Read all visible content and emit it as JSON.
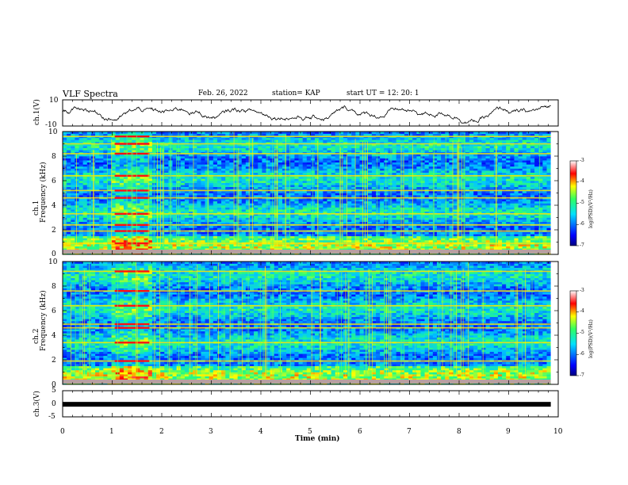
{
  "chart_data": {
    "type": "heatmap",
    "title": "VLF Spectra",
    "date": "Feb. 26, 2022",
    "station": "station= KAP",
    "start_ut": "start  UT  =   12: 20: 1",
    "xlabel": "Time  (min)",
    "xlim": [
      0,
      10
    ],
    "xticks": [
      "0",
      "1",
      "2",
      "3",
      "4",
      "5",
      "6",
      "7",
      "8",
      "9",
      "10"
    ],
    "panels": [
      {
        "id": "ch1_waveform",
        "type": "line",
        "ylabel": "ch.1(V)",
        "ylim": [
          -10,
          10
        ],
        "yticks": [
          "10",
          "-10"
        ]
      },
      {
        "id": "ch1_spectrogram",
        "type": "heatmap",
        "ylabel": "Frequency  (kHz)",
        "channel": "ch.1",
        "ylim": [
          0,
          10
        ],
        "yticks": [
          "0",
          "2",
          "4",
          "6",
          "8",
          "10"
        ],
        "colorbar": {
          "label": "log(PSD)(V²/Hz)",
          "range": [
            -7,
            -3
          ],
          "ticks": [
            "-3",
            "-4",
            "-5",
            "-6",
            "-7"
          ]
        },
        "strong_bands_khz": [
          0.9,
          1.9,
          2.4,
          3.3,
          4.6,
          5.2,
          6.4,
          8.2,
          9.0,
          9.6
        ],
        "disturbance_interval_min": [
          1.05,
          1.75
        ]
      },
      {
        "id": "ch2_spectrogram",
        "type": "heatmap",
        "ylabel": "Frequency  (kHz)",
        "channel": "ch.2",
        "ylim": [
          0,
          10
        ],
        "yticks": [
          "0",
          "2",
          "4",
          "6",
          "8",
          "10"
        ],
        "colorbar": {
          "label": "log(PSD)(V²/Hz)",
          "range": [
            -7,
            -3
          ],
          "ticks": [
            "-3",
            "-4",
            "-5",
            "-6",
            "-7"
          ]
        },
        "strong_bands_khz": [
          0.3,
          1.9,
          3.4,
          4.6,
          4.9,
          6.4,
          7.6,
          9.2
        ],
        "disturbance_interval_min": [
          1.05,
          1.75
        ]
      },
      {
        "id": "ch3_waveform",
        "type": "line",
        "ylabel": "ch.3(V)",
        "ylim": [
          -5,
          5
        ],
        "yticks": [
          "5",
          "0",
          "-5"
        ],
        "constant_value": -0.2
      }
    ],
    "data_end_min": 9.85
  }
}
